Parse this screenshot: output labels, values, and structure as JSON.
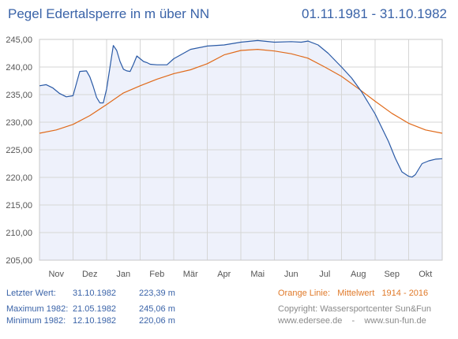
{
  "header": {
    "title": "Pegel Edertalsperre in m über NN",
    "range": "01.11.1981 - 31.10.1982"
  },
  "chart_data": {
    "type": "line",
    "title": "Pegel Edertalsperre in m über NN",
    "xlabel": "",
    "ylabel": "",
    "x_categories": [
      "Nov",
      "Dez",
      "Jan",
      "Feb",
      "Mär",
      "Apr",
      "Mai",
      "Jun",
      "Jul",
      "Aug",
      "Sep",
      "Okt"
    ],
    "ylim": [
      205,
      245
    ],
    "yticks": [
      "205,00",
      "210,00",
      "215,00",
      "220,00",
      "225,00",
      "230,00",
      "235,00",
      "240,00",
      "245,00"
    ],
    "grid": true,
    "colors": {
      "actual": "#2a5aa6",
      "mean": "#e06a1a",
      "fill": "#eef1fb",
      "grid": "#d6d6d6"
    },
    "series": [
      {
        "id": "actual",
        "x": [
          0,
          0.2,
          0.4,
          0.6,
          0.8,
          1.0,
          1.2,
          1.4,
          1.5,
          1.6,
          1.7,
          1.8,
          1.9,
          2.0,
          2.1,
          2.2,
          2.3,
          2.4,
          2.5,
          2.6,
          2.7,
          2.8,
          2.9,
          3.0,
          3.1,
          3.2,
          3.3,
          3.5,
          3.8,
          4.0,
          4.5,
          5.0,
          5.5,
          6.0,
          6.5,
          7.0,
          7.5,
          7.8,
          8.0,
          8.3,
          8.6,
          9.0,
          9.3,
          9.6,
          9.8,
          10.0,
          10.2,
          10.4,
          10.6,
          10.8,
          11.0,
          11.1,
          11.2,
          11.4,
          11.6,
          11.8,
          12.0
        ],
        "values": [
          236.6,
          236.8,
          236.2,
          235.2,
          234.6,
          234.8,
          239.2,
          239.3,
          238.2,
          236.5,
          234.5,
          233.5,
          233.5,
          236.0,
          240.0,
          243.9,
          243.0,
          241.0,
          239.6,
          239.3,
          239.2,
          240.5,
          242.0,
          241.5,
          241.0,
          240.8,
          240.5,
          240.4,
          240.4,
          241.5,
          243.2,
          243.8,
          244.0,
          244.5,
          244.8,
          244.5,
          244.6,
          244.5,
          244.7,
          244.0,
          242.5,
          240.0,
          238.0,
          235.5,
          233.5,
          231.5,
          229.0,
          226.5,
          223.5,
          221.0,
          220.2,
          220.06,
          220.5,
          222.5,
          223.0,
          223.3,
          223.39
        ]
      },
      {
        "id": "mean",
        "x": [
          0,
          0.5,
          1.0,
          1.5,
          2.0,
          2.5,
          3.0,
          3.5,
          4.0,
          4.5,
          5.0,
          5.5,
          6.0,
          6.5,
          7.0,
          7.5,
          8.0,
          8.5,
          9.0,
          9.5,
          10.0,
          10.5,
          11.0,
          11.5,
          12.0
        ],
        "values": [
          228.0,
          228.6,
          229.6,
          231.2,
          233.2,
          235.3,
          236.6,
          237.8,
          238.8,
          239.5,
          240.6,
          242.2,
          243.0,
          243.2,
          242.9,
          242.4,
          241.6,
          240.0,
          238.3,
          236.1,
          233.8,
          231.6,
          229.8,
          228.6,
          228.0
        ]
      }
    ]
  },
  "info_left": {
    "last_label": "Letzter Wert:",
    "last_date": "31.10.1982",
    "last_value": "223,39 m",
    "max_label": "Maximum 1982:",
    "max_date": "21.05.1982",
    "max_value": "245,06 m",
    "min_label": "Minimum  1982:",
    "min_date": "12.10.1982",
    "min_value": "220,06 m"
  },
  "info_right": {
    "legend": "Orange Linie:   Mittelwert   1914 - 2016",
    "copyright": "Copyright: Wassersportcenter Sun&Fun",
    "websites": "www.edersee.de    -    www.sun-fun.de"
  }
}
